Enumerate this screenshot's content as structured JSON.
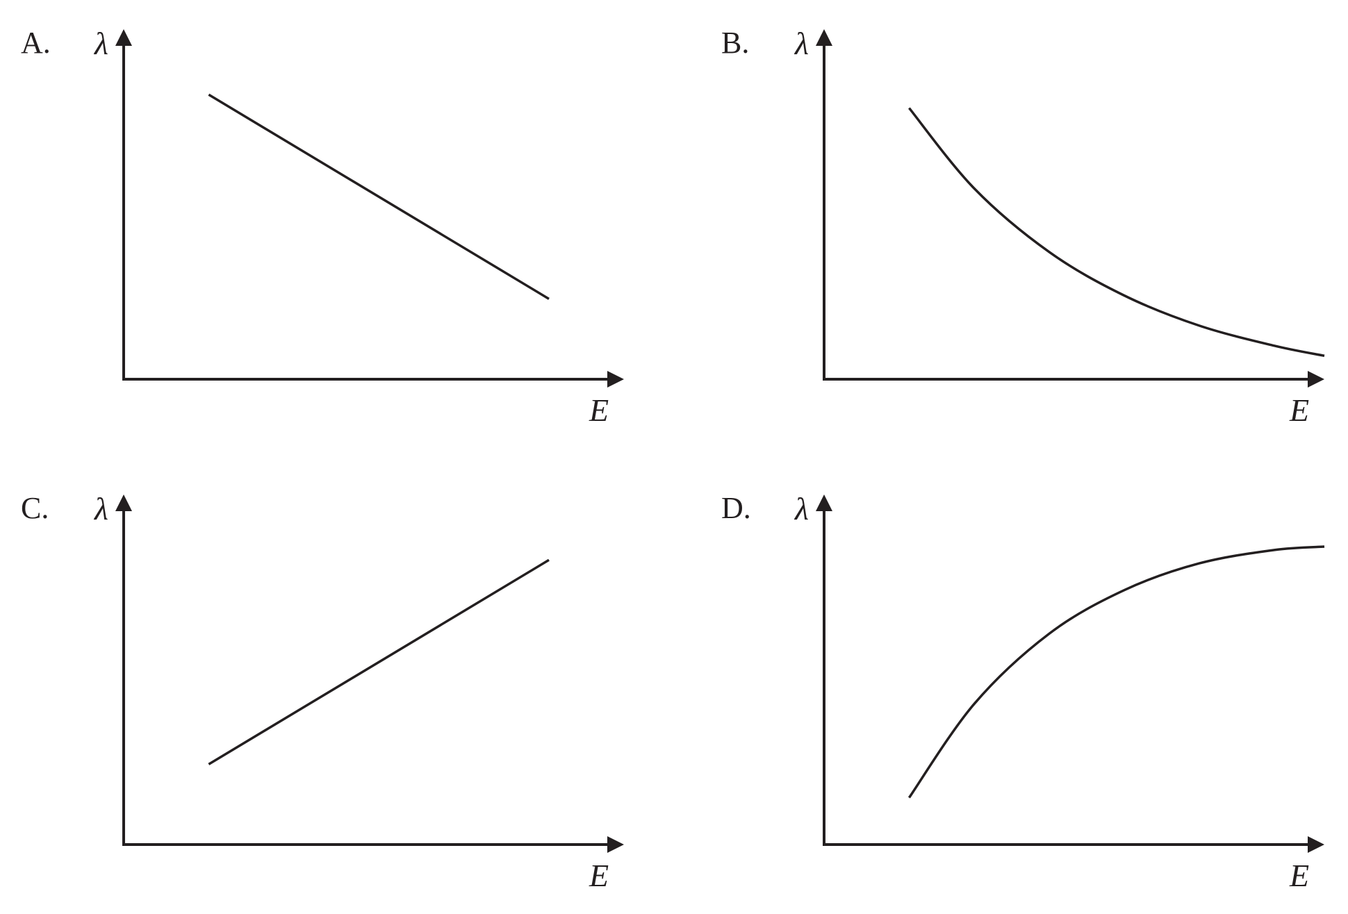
{
  "chart_data": [
    {
      "type": "line",
      "option": "A.",
      "xlabel": "E",
      "ylabel": "λ",
      "shape": "linear-decreasing",
      "x": [
        0.17,
        0.85
      ],
      "y": [
        0.85,
        0.24
      ],
      "grid": false,
      "ticks": false
    },
    {
      "type": "line",
      "option": "B.",
      "xlabel": "E",
      "ylabel": "λ",
      "shape": "decreasing-convex (decaying)",
      "x": [
        0.17,
        0.3,
        0.45,
        0.6,
        0.75,
        0.9,
        1.0
      ],
      "y": [
        0.81,
        0.57,
        0.38,
        0.25,
        0.16,
        0.1,
        0.07
      ],
      "grid": false,
      "ticks": false
    },
    {
      "type": "line",
      "option": "C.",
      "xlabel": "E",
      "ylabel": "λ",
      "shape": "linear-increasing",
      "x": [
        0.17,
        0.85
      ],
      "y": [
        0.24,
        0.85
      ],
      "grid": false,
      "ticks": false
    },
    {
      "type": "line",
      "option": "D.",
      "xlabel": "E",
      "ylabel": "λ",
      "shape": "increasing-concave (saturating)",
      "x": [
        0.17,
        0.3,
        0.45,
        0.6,
        0.75,
        0.9,
        1.0
      ],
      "y": [
        0.14,
        0.42,
        0.63,
        0.76,
        0.84,
        0.88,
        0.89
      ],
      "grid": false,
      "ticks": false
    }
  ]
}
